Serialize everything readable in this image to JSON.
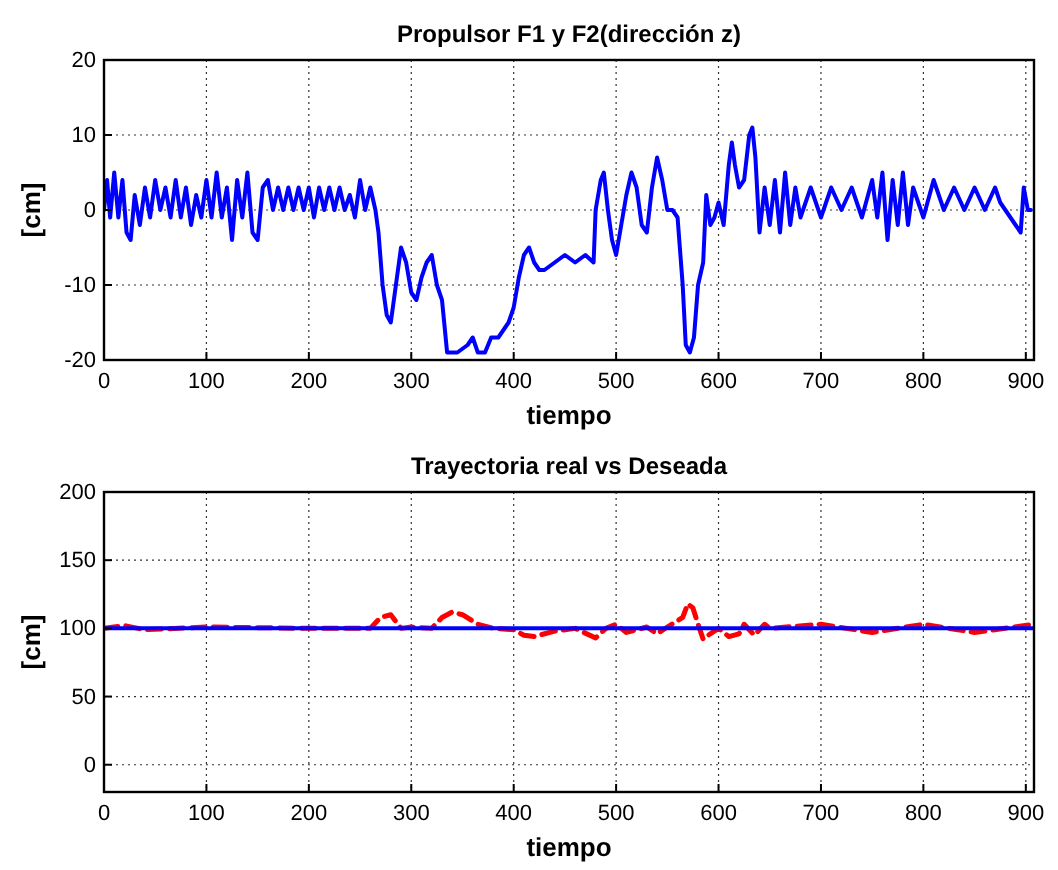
{
  "chart_data": [
    {
      "type": "line",
      "title": "Propulsor F1 y F2(dirección z)",
      "xlabel": "tiempo",
      "ylabel": "[cm]",
      "xlim": [
        0,
        908
      ],
      "ylim": [
        -20,
        20
      ],
      "xticks": [
        0,
        100,
        200,
        300,
        400,
        500,
        600,
        700,
        800,
        900
      ],
      "yticks": [
        -20,
        -10,
        0,
        10,
        20
      ],
      "grid": true,
      "marker": "none",
      "series": [
        {
          "color": "#0000ff",
          "line_style": "solid",
          "x": [
            0,
            3,
            6,
            10,
            14,
            18,
            22,
            26,
            30,
            35,
            40,
            45,
            50,
            55,
            60,
            65,
            70,
            75,
            80,
            85,
            90,
            95,
            100,
            105,
            110,
            115,
            120,
            125,
            130,
            135,
            140,
            145,
            150,
            155,
            160,
            165,
            170,
            175,
            180,
            185,
            190,
            195,
            200,
            205,
            210,
            215,
            220,
            225,
            230,
            235,
            240,
            245,
            250,
            255,
            260,
            265,
            268,
            272,
            276,
            280,
            285,
            290,
            295,
            300,
            305,
            310,
            315,
            320,
            325,
            330,
            335,
            345,
            355,
            360,
            365,
            372,
            378,
            385,
            390,
            395,
            400,
            405,
            410,
            415,
            420,
            425,
            430,
            440,
            450,
            460,
            470,
            478,
            480,
            485,
            488,
            492,
            496,
            500,
            505,
            510,
            515,
            520,
            525,
            530,
            535,
            540,
            545,
            550,
            555,
            560,
            565,
            568,
            572,
            576,
            580,
            585,
            588,
            592,
            596,
            600,
            605,
            610,
            613,
            616,
            620,
            625,
            630,
            633,
            636,
            640,
            645,
            650,
            655,
            660,
            665,
            670,
            675,
            680,
            690,
            700,
            710,
            720,
            730,
            740,
            750,
            755,
            760,
            765,
            770,
            775,
            780,
            785,
            790,
            800,
            810,
            820,
            830,
            840,
            850,
            860,
            870,
            875,
            880,
            885,
            890,
            895,
            898,
            902,
            905
          ],
          "values": [
            0,
            4,
            -1,
            5,
            -1,
            4,
            -3,
            -4,
            2,
            -2,
            3,
            -1,
            4,
            0,
            3,
            -1,
            4,
            -1,
            3,
            -2,
            2,
            -1,
            4,
            -1,
            5,
            -1,
            3,
            -4,
            4,
            -1,
            5,
            -3,
            -4,
            3,
            4,
            0,
            3,
            0,
            3,
            0,
            3,
            0,
            3,
            -1,
            3,
            0,
            3,
            0,
            3,
            0,
            2,
            -1,
            4,
            0,
            3,
            0,
            -3,
            -10,
            -14,
            -15,
            -10,
            -5,
            -7,
            -11,
            -12,
            -9,
            -7,
            -6,
            -10,
            -12,
            -19,
            -19,
            -18,
            -17,
            -19,
            -19,
            -17,
            -17,
            -16,
            -15,
            -13,
            -9,
            -6,
            -5,
            -7,
            -8,
            -8,
            -7,
            -6,
            -7,
            -6,
            -7,
            0,
            4,
            5,
            0,
            -4,
            -6,
            -2,
            2,
            5,
            3,
            -2,
            -3,
            3,
            7,
            4,
            0,
            0,
            -1,
            -10,
            -18,
            -19,
            -17,
            -10,
            -7,
            2,
            -2,
            -1,
            1,
            -2,
            6,
            9,
            6,
            3,
            4,
            10,
            11,
            7,
            -3,
            3,
            -2,
            4,
            -3,
            5,
            -2,
            3,
            -1,
            3,
            -1,
            3,
            0,
            3,
            -1,
            4,
            -1,
            5,
            -4,
            4,
            -2,
            5,
            -2,
            3,
            -1,
            4,
            0,
            3,
            0,
            3,
            0,
            3,
            1,
            0,
            -1,
            -2,
            -3,
            3,
            0,
            0
          ]
        }
      ]
    },
    {
      "type": "line",
      "title": "Trayectoria real vs Deseada",
      "xlabel": "tiempo",
      "ylabel": "[cm]",
      "xlim": [
        0,
        908
      ],
      "ylim": [
        -20,
        200
      ],
      "xticks": [
        0,
        100,
        200,
        300,
        400,
        500,
        600,
        700,
        800,
        900
      ],
      "yticks": [
        0,
        50,
        100,
        150,
        200
      ],
      "grid": true,
      "marker": "none",
      "series": [
        {
          "color": "#ff0000",
          "line_style": "dashed",
          "x": [
            0,
            20,
            40,
            100,
            200,
            260,
            270,
            280,
            290,
            300,
            320,
            330,
            340,
            350,
            365,
            380,
            400,
            410,
            420,
            440,
            460,
            480,
            490,
            500,
            510,
            530,
            540,
            550,
            565,
            570,
            575,
            580,
            585,
            590,
            600,
            610,
            620,
            625,
            635,
            645,
            650,
            700,
            750,
            800,
            850,
            908
          ],
          "values": [
            100,
            102,
            99,
            101,
            100,
            100,
            108,
            110,
            100,
            101,
            100,
            108,
            112,
            110,
            103,
            100,
            99,
            95,
            94,
            98,
            100,
            93,
            100,
            103,
            97,
            101,
            96,
            101,
            108,
            118,
            115,
            103,
            92,
            95,
            100,
            94,
            96,
            103,
            95,
            103,
            100,
            103,
            97,
            103,
            97,
            103
          ]
        },
        {
          "color": "#0000ff",
          "line_style": "solid",
          "x": [
            0,
            908
          ],
          "values": [
            100,
            100
          ]
        }
      ]
    }
  ]
}
